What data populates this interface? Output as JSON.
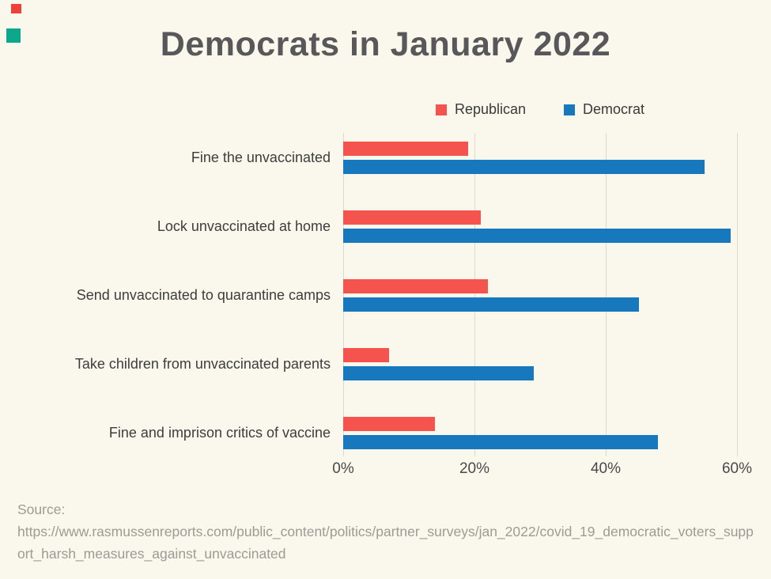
{
  "page": {
    "background": "#FAF7EC"
  },
  "decor": {
    "red_square_color": "#EF4136",
    "teal_square_color": "#0DA88C"
  },
  "title": {
    "text": "Democrats in January 2022",
    "color": "#58585A"
  },
  "chart_data": {
    "type": "bar",
    "orientation": "horizontal",
    "title": "Democrats in January 2022",
    "categories": [
      "Fine the unvaccinated",
      "Lock unvaccinated at home",
      "Send unvaccinated to quarantine camps",
      "Take children from unvaccinated parents",
      "Fine and imprison critics of vaccine"
    ],
    "series": [
      {
        "name": "Republican",
        "color": "#F4544D",
        "values": [
          19,
          21,
          22,
          7,
          14
        ]
      },
      {
        "name": "Democrat",
        "color": "#1878BE",
        "values": [
          55,
          59,
          45,
          29,
          48
        ]
      }
    ],
    "x_ticks": [
      "0%",
      "20%",
      "40%",
      "60%"
    ],
    "xlim": [
      0,
      60
    ],
    "unit": "%",
    "grid": "vertical",
    "legend_position": "top"
  },
  "source": {
    "label": "Source:",
    "url": "https://www.rasmussenreports.com/public_content/politics/partner_surveys/jan_2022/covid_19_democratic_voters_support_harsh_measures_against_unvaccinated"
  }
}
